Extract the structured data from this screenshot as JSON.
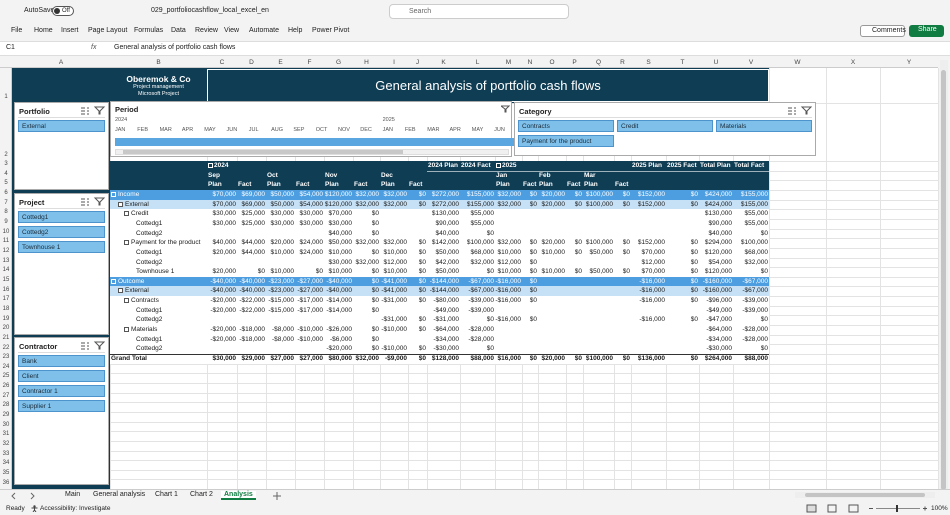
{
  "titlebar": {
    "autosave": "AutoSave",
    "toggle": "Off",
    "filename": "029_portfoliocashflow_local_excel_en",
    "search": "Search"
  },
  "ribbon": {
    "tabs": [
      "File",
      "Home",
      "Insert",
      "Page Layout",
      "Formulas",
      "Data",
      "Review",
      "View",
      "Automate",
      "Help",
      "Power Pivot"
    ],
    "comments": "Comments",
    "share": "Share"
  },
  "formula_bar": {
    "name_box": "C1",
    "fx": "fx",
    "formula": "General analysis of portfolio cash flows"
  },
  "columns": [
    "A",
    "B",
    "C",
    "D",
    "E",
    "F",
    "G",
    "H",
    "I",
    "J",
    "K",
    "L",
    "M",
    "N",
    "O",
    "P",
    "Q",
    "R",
    "S",
    "T",
    "U",
    "V",
    "W",
    "X",
    "Y"
  ],
  "rows": [
    1,
    2,
    3,
    4,
    5,
    6,
    7,
    8,
    9,
    10,
    11,
    12,
    13,
    14,
    15,
    16,
    17,
    18,
    19,
    20,
    21,
    22,
    23,
    24,
    25,
    26,
    27,
    28,
    29,
    30,
    31,
    32,
    33,
    34,
    35,
    36
  ],
  "header": {
    "company": "Oberemok & Co",
    "line2": "Project management",
    "line3": "Microsoft Project",
    "title": "General analysis of portfolio cash flows"
  },
  "slicers": [
    {
      "title": "Portfolio",
      "items": [
        "External"
      ]
    },
    {
      "title": "Project",
      "items": [
        "Cottedg1",
        "Cottedg2",
        "Townhouse 1"
      ]
    },
    {
      "title": "Contractor",
      "items": [
        "Bank",
        "Client",
        "Contractor 1",
        "Supplier 1"
      ]
    },
    {
      "title": "Category",
      "items": [
        "Contracts",
        "Credit",
        "Materials",
        "Payment for the product"
      ]
    }
  ],
  "timeline": {
    "title": "Period",
    "years": [
      {
        "label": "2024",
        "months": [
          "JAN",
          "FEB",
          "MAR",
          "APR",
          "MAY",
          "JUN",
          "JUL",
          "AUG",
          "SEP",
          "OCT",
          "NOV",
          "DEC"
        ]
      },
      {
        "label": "2025",
        "months": [
          "JAN",
          "FEB",
          "MAR",
          "APR",
          "MAY",
          "JUN"
        ]
      }
    ]
  },
  "pivot": {
    "years": [
      "2024",
      "2025"
    ],
    "year_totals": [
      [
        "2024 Plan",
        "2024 Fact"
      ],
      [
        "2025 Plan",
        "2025 Fact"
      ]
    ],
    "grand_totals": [
      "Total Plan",
      "Total Fact"
    ],
    "months": [
      [
        "Sep",
        "Oct",
        "Nov",
        "Dec"
      ],
      [
        "Jan",
        "Feb",
        "Mar"
      ]
    ],
    "measures": [
      "Plan",
      "Fact"
    ],
    "rows": [
      {
        "label": "Income",
        "kind": "section",
        "values": [
          "$70,000",
          "$69,000",
          "$50,000",
          "$54,000",
          "$120,000",
          "$32,000",
          "$32,000",
          "$0",
          "$272,000",
          "$155,000",
          "$32,000",
          "$0",
          "$20,000",
          "$0",
          "$100,000",
          "$0",
          "$152,000",
          "$0",
          "$424,000",
          "$155,000"
        ]
      },
      {
        "label": "External",
        "kind": "group",
        "values": [
          "$70,000",
          "$69,000",
          "$50,000",
          "$54,000",
          "$120,000",
          "$32,000",
          "$32,000",
          "$0",
          "$272,000",
          "$155,000",
          "$32,000",
          "$0",
          "$20,000",
          "$0",
          "$100,000",
          "$0",
          "$152,000",
          "$0",
          "$424,000",
          "$155,000"
        ]
      },
      {
        "label": "Credit",
        "kind": "category",
        "values": [
          "$30,000",
          "$25,000",
          "$30,000",
          "$30,000",
          "$70,000",
          "$0",
          null,
          null,
          "$130,000",
          "$55,000",
          null,
          null,
          null,
          null,
          null,
          null,
          null,
          null,
          "$130,000",
          "$55,000"
        ]
      },
      {
        "label": "Cottedg1",
        "kind": "item",
        "values": [
          "$30,000",
          "$25,000",
          "$30,000",
          "$30,000",
          "$30,000",
          "$0",
          null,
          null,
          "$90,000",
          "$55,000",
          null,
          null,
          null,
          null,
          null,
          null,
          null,
          null,
          "$90,000",
          "$55,000"
        ]
      },
      {
        "label": "Cottedg2",
        "kind": "item",
        "values": [
          null,
          null,
          null,
          null,
          "$40,000",
          "$0",
          null,
          null,
          "$40,000",
          "$0",
          null,
          null,
          null,
          null,
          null,
          null,
          null,
          null,
          "$40,000",
          "$0"
        ]
      },
      {
        "label": "Payment for the product",
        "kind": "category",
        "values": [
          "$40,000",
          "$44,000",
          "$20,000",
          "$24,000",
          "$50,000",
          "$32,000",
          "$32,000",
          "$0",
          "$142,000",
          "$100,000",
          "$32,000",
          "$0",
          "$20,000",
          "$0",
          "$100,000",
          "$0",
          "$152,000",
          "$0",
          "$294,000",
          "$100,000"
        ]
      },
      {
        "label": "Cottedg1",
        "kind": "item",
        "values": [
          "$20,000",
          "$44,000",
          "$10,000",
          "$24,000",
          "$10,000",
          "$0",
          "$10,000",
          "$0",
          "$50,000",
          "$68,000",
          "$10,000",
          "$0",
          "$10,000",
          "$0",
          "$50,000",
          "$0",
          "$70,000",
          "$0",
          "$120,000",
          "$68,000"
        ]
      },
      {
        "label": "Cottedg2",
        "kind": "item",
        "values": [
          null,
          null,
          null,
          null,
          "$30,000",
          "$32,000",
          "$12,000",
          "$0",
          "$42,000",
          "$32,000",
          "$12,000",
          "$0",
          null,
          null,
          null,
          null,
          "$12,000",
          "$0",
          "$54,000",
          "$32,000"
        ]
      },
      {
        "label": "Townhouse 1",
        "kind": "item",
        "values": [
          "$20,000",
          "$0",
          "$10,000",
          "$0",
          "$10,000",
          "$0",
          "$10,000",
          "$0",
          "$50,000",
          "$0",
          "$10,000",
          "$0",
          "$10,000",
          "$0",
          "$50,000",
          "$0",
          "$70,000",
          "$0",
          "$120,000",
          "$0"
        ]
      },
      {
        "label": "Outcome",
        "kind": "section",
        "values": [
          "-$40,000",
          "-$40,000",
          "-$23,000",
          "-$27,000",
          "-$40,000",
          "$0",
          "-$41,000",
          "$0",
          "-$144,000",
          "-$67,000",
          "-$16,000",
          "$0",
          null,
          null,
          null,
          null,
          "-$16,000",
          "$0",
          "-$160,000",
          "-$67,000"
        ]
      },
      {
        "label": "External",
        "kind": "group",
        "values": [
          "-$40,000",
          "-$40,000",
          "-$23,000",
          "-$27,000",
          "-$40,000",
          "$0",
          "-$41,000",
          "$0",
          "-$144,000",
          "-$67,000",
          "-$16,000",
          "$0",
          null,
          null,
          null,
          null,
          "-$16,000",
          "$0",
          "-$160,000",
          "-$67,000"
        ]
      },
      {
        "label": "Contracts",
        "kind": "category",
        "values": [
          "-$20,000",
          "-$22,000",
          "-$15,000",
          "-$17,000",
          "-$14,000",
          "$0",
          "-$31,000",
          "$0",
          "-$80,000",
          "-$39,000",
          "-$16,000",
          "$0",
          null,
          null,
          null,
          null,
          "-$16,000",
          "$0",
          "-$96,000",
          "-$39,000"
        ]
      },
      {
        "label": "Cottedg1",
        "kind": "item",
        "values": [
          "-$20,000",
          "-$22,000",
          "-$15,000",
          "-$17,000",
          "-$14,000",
          "$0",
          null,
          null,
          "-$49,000",
          "-$39,000",
          null,
          null,
          null,
          null,
          null,
          null,
          null,
          null,
          "-$49,000",
          "-$39,000"
        ]
      },
      {
        "label": "Cottedg2",
        "kind": "item",
        "values": [
          null,
          null,
          null,
          null,
          null,
          null,
          "-$31,000",
          "$0",
          "-$31,000",
          "$0",
          "-$16,000",
          "$0",
          null,
          null,
          null,
          null,
          "-$16,000",
          "$0",
          "-$47,000",
          "$0"
        ]
      },
      {
        "label": "Materials",
        "kind": "category",
        "values": [
          "-$20,000",
          "-$18,000",
          "-$8,000",
          "-$10,000",
          "-$26,000",
          "$0",
          "-$10,000",
          "$0",
          "-$64,000",
          "-$28,000",
          null,
          null,
          null,
          null,
          null,
          null,
          null,
          null,
          "-$64,000",
          "-$28,000"
        ]
      },
      {
        "label": "Cottedg1",
        "kind": "item",
        "values": [
          "-$20,000",
          "-$18,000",
          "-$8,000",
          "-$10,000",
          "-$6,000",
          "$0",
          null,
          null,
          "-$34,000",
          "-$28,000",
          null,
          null,
          null,
          null,
          null,
          null,
          null,
          null,
          "-$34,000",
          "-$28,000"
        ]
      },
      {
        "label": "Cottedg2",
        "kind": "item",
        "values": [
          null,
          null,
          null,
          null,
          "-$20,000",
          "$0",
          "-$10,000",
          "$0",
          "-$30,000",
          "$0",
          null,
          null,
          null,
          null,
          null,
          null,
          null,
          null,
          "-$30,000",
          "$0"
        ]
      },
      {
        "label": "Grand Total",
        "kind": "total",
        "values": [
          "$30,000",
          "$29,000",
          "$27,000",
          "$27,000",
          "$80,000",
          "$32,000",
          "-$9,000",
          "$0",
          "$128,000",
          "$88,000",
          "$16,000",
          "$0",
          "$20,000",
          "$0",
          "$100,000",
          "$0",
          "$136,000",
          "$0",
          "$264,000",
          "$88,000"
        ]
      }
    ]
  },
  "sheet_tabs": {
    "tabs": [
      "Main",
      "General analysis",
      "Chart 1",
      "Chart 2",
      "Analysis"
    ],
    "active": 4
  },
  "status": {
    "ready": "Ready",
    "accessibility": "Accessibility: Investigate",
    "zoom": "100%"
  }
}
